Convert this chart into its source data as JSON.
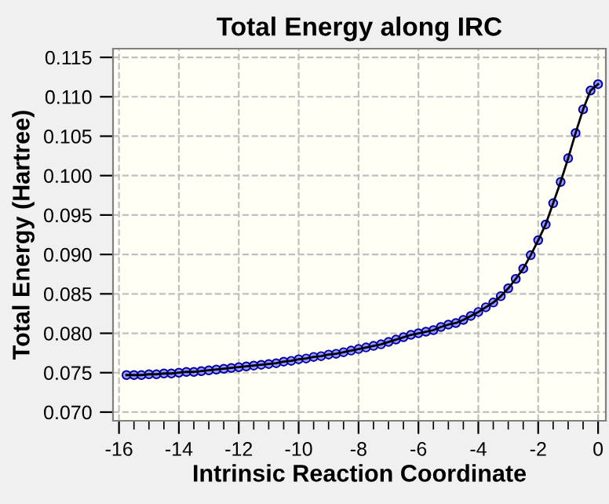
{
  "chart_data": {
    "type": "line",
    "title": "Total Energy along IRC",
    "xlabel": "Intrinsic Reaction Coordinate",
    "ylabel": "Total Energy (Hartree)",
    "series": [
      {
        "color": "#0000a0",
        "marker": "circle",
        "line_style": "solid",
        "x": [
          -15.75,
          -15.5,
          -15.25,
          -15,
          -14.75,
          -14.5,
          -14.25,
          -14,
          -13.75,
          -13.5,
          -13.25,
          -13,
          -12.75,
          -12.5,
          -12.25,
          -12,
          -11.75,
          -11.5,
          -11.25,
          -11,
          -10.75,
          -10.5,
          -10.25,
          -10,
          -9.75,
          -9.5,
          -9.25,
          -9,
          -8.75,
          -8.5,
          -8.25,
          -8,
          -7.75,
          -7.5,
          -7.25,
          -7,
          -6.75,
          -6.5,
          -6.25,
          -6,
          -5.75,
          -5.5,
          -5.25,
          -5,
          -4.75,
          -4.5,
          -4.25,
          -4,
          -3.75,
          -3.5,
          -3.25,
          -3,
          -2.75,
          -2.5,
          -2.25,
          -2,
          -1.75,
          -1.5,
          -1.25,
          -1,
          -0.75,
          -0.5,
          -0.25,
          0
        ],
        "values": [
          0.0747,
          0.0747,
          0.0747,
          0.0748,
          0.0748,
          0.0749,
          0.0749,
          0.075,
          0.0751,
          0.0751,
          0.0752,
          0.0753,
          0.0754,
          0.0755,
          0.0756,
          0.0757,
          0.0758,
          0.0759,
          0.076,
          0.0761,
          0.0762,
          0.0764,
          0.0765,
          0.0767,
          0.0768,
          0.077,
          0.0771,
          0.0773,
          0.0774,
          0.0776,
          0.0778,
          0.078,
          0.0782,
          0.0784,
          0.0786,
          0.0789,
          0.0792,
          0.0795,
          0.0798,
          0.08,
          0.0802,
          0.0804,
          0.0808,
          0.0811,
          0.0813,
          0.0817,
          0.0822,
          0.0827,
          0.0833,
          0.0839,
          0.0847,
          0.0857,
          0.0869,
          0.0882,
          0.0899,
          0.0918,
          0.0938,
          0.0965,
          0.0992,
          0.1022,
          0.1054,
          0.1084,
          0.1108,
          0.1116
        ]
      }
    ],
    "xlim": [
      -16.2,
      0.26
    ],
    "xticks": [
      -16,
      -14,
      -12,
      -10,
      -8,
      -6,
      -4,
      -2,
      0
    ],
    "ylim": [
      0.0689,
      0.1161
    ],
    "yticks": [
      {
        "value": 0.07,
        "label": "0.070"
      },
      {
        "value": 0.075,
        "label": "0.075"
      },
      {
        "value": 0.08,
        "label": "0.080"
      },
      {
        "value": 0.085,
        "label": "0.085"
      },
      {
        "value": 0.09,
        "label": "0.090"
      },
      {
        "value": 0.095,
        "label": "0.095"
      },
      {
        "value": 0.1,
        "label": "0.100"
      },
      {
        "value": 0.105,
        "label": "0.105"
      },
      {
        "value": 0.11,
        "label": "0.110"
      },
      {
        "value": 0.115,
        "label": "0.115"
      }
    ],
    "grid": true
  }
}
